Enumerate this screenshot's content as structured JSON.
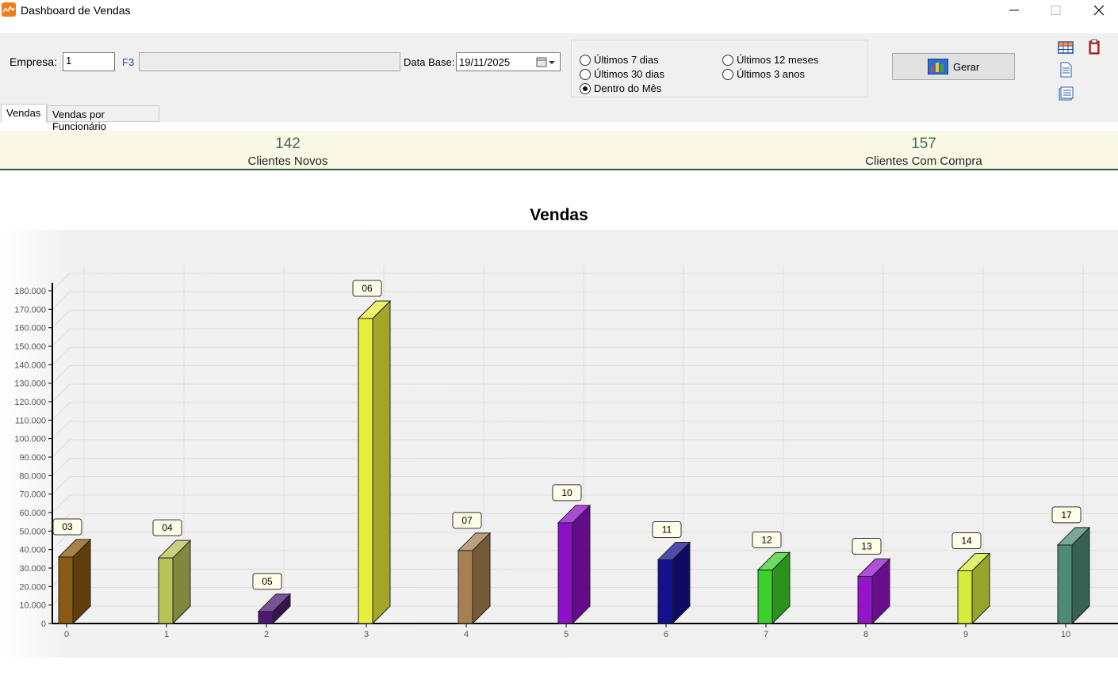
{
  "window": {
    "title": "Dashboard de Vendas"
  },
  "form": {
    "empresa_label": "Empresa:",
    "empresa_value": "1",
    "f3_label": "F3",
    "data_base_label": "Data Base:",
    "data_base_value": "19/11/2025"
  },
  "periods": [
    {
      "label": "Últimos 7 dias",
      "selected": false
    },
    {
      "label": "Últimos 30 dias",
      "selected": false
    },
    {
      "label": "Dentro do Mês",
      "selected": true
    },
    {
      "label": "Últimos 12 meses",
      "selected": false
    },
    {
      "label": "Últimos 3 anos",
      "selected": false
    }
  ],
  "gerar_label": "Gerar",
  "tabs": [
    {
      "label": "Vendas",
      "active": true
    },
    {
      "label": "Vendas por Funcionário",
      "active": false
    }
  ],
  "stats": [
    {
      "value": "142",
      "label": "Clientes Novos"
    },
    {
      "value": "157",
      "label": "Clientes Com Compra"
    }
  ],
  "chart_data": {
    "type": "bar",
    "title": "Vendas",
    "x": [
      0,
      1,
      2,
      3,
      4,
      5,
      6,
      7,
      8,
      9,
      10
    ],
    "labels": [
      "03",
      "04",
      "05",
      "06",
      "07",
      "10",
      "11",
      "12",
      "13",
      "14",
      "17"
    ],
    "values": [
      36000,
      35500,
      6500,
      165000,
      39500,
      54500,
      34500,
      29000,
      25500,
      28500,
      42500
    ],
    "colors": [
      "#8a5a10",
      "#b7c257",
      "#4b1a72",
      "#e7ef3a",
      "#a6804f",
      "#8d0fc7",
      "#15108f",
      "#3cd12a",
      "#9514c9",
      "#d4ec3a",
      "#4e8a76"
    ],
    "yticks": [
      "0",
      "10.000",
      "20.000",
      "30.000",
      "40.000",
      "50.000",
      "60.000",
      "70.000",
      "80.000",
      "90.000",
      "100.000",
      "110.000",
      "120.000",
      "130.000",
      "140.000",
      "150.000",
      "160.000",
      "170.000",
      "180.000"
    ],
    "ylim": [
      0,
      180000
    ],
    "grid": true,
    "legend": "none"
  }
}
